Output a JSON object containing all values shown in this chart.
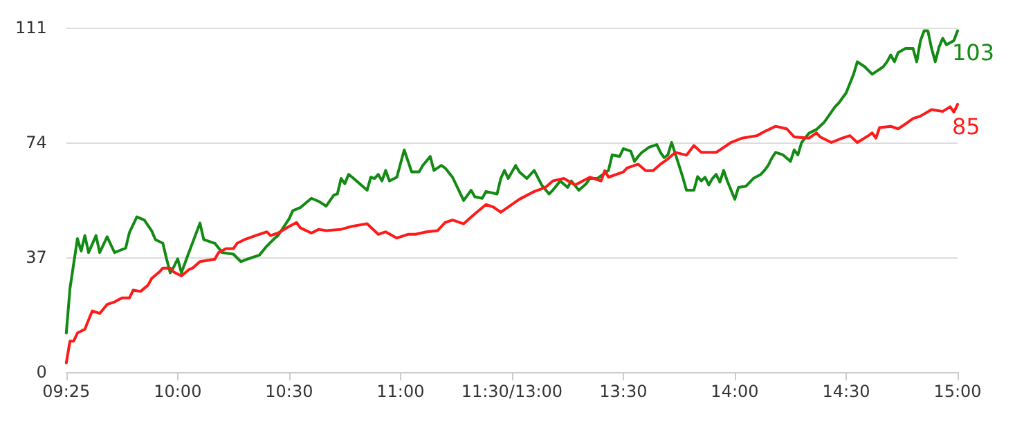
{
  "chart_data": {
    "type": "line",
    "categories": [
      "09:25",
      null,
      null,
      null,
      null,
      null,
      null,
      null,
      null,
      null,
      null,
      null,
      null,
      null,
      null,
      null,
      null,
      null,
      null,
      null,
      null,
      null,
      null,
      null,
      null,
      null,
      null,
      null,
      null,
      null,
      "10:00",
      null,
      null,
      null,
      null,
      null,
      null,
      null,
      null,
      null,
      null,
      null,
      null,
      null,
      null,
      null,
      null,
      null,
      null,
      null,
      null,
      null,
      null,
      null,
      null,
      null,
      null,
      null,
      null,
      null,
      "10:30",
      null,
      null,
      null,
      null,
      null,
      null,
      null,
      null,
      null,
      null,
      null,
      null,
      null,
      null,
      null,
      null,
      null,
      null,
      null,
      null,
      null,
      null,
      null,
      null,
      null,
      null,
      null,
      null,
      null,
      "11:00",
      null,
      null,
      null,
      null,
      null,
      null,
      null,
      null,
      null,
      null,
      null,
      null,
      null,
      null,
      null,
      null,
      null,
      null,
      null,
      null,
      null,
      null,
      null,
      null,
      null,
      null,
      null,
      null,
      null,
      "11:30/13:00",
      null,
      null,
      null,
      null,
      null,
      null,
      null,
      null,
      null,
      null,
      null,
      null,
      null,
      null,
      null,
      null,
      null,
      null,
      null,
      null,
      null,
      null,
      null,
      null,
      null,
      null,
      null,
      null,
      null,
      "13:30",
      null,
      null,
      null,
      null,
      null,
      null,
      null,
      null,
      null,
      null,
      null,
      null,
      null,
      null,
      null,
      null,
      null,
      null,
      null,
      null,
      null,
      null,
      null,
      null,
      null,
      null,
      null,
      null,
      null,
      "14:00",
      null,
      null,
      null,
      null,
      null,
      null,
      null,
      null,
      null,
      null,
      null,
      null,
      null,
      null,
      null,
      null,
      null,
      null,
      null,
      null,
      null,
      null,
      null,
      null,
      null,
      null,
      null,
      null,
      null,
      "14:30",
      null,
      null,
      null,
      null,
      null,
      null,
      null,
      null,
      null,
      null,
      null,
      null,
      null,
      null,
      null,
      null,
      null,
      null,
      null,
      null,
      null,
      null,
      null,
      null,
      null,
      null,
      null,
      null,
      null,
      "15:00"
    ],
    "ylim": [
      0,
      111
    ],
    "yticks": [
      0,
      37,
      74,
      111
    ],
    "grid": "y",
    "legend": false,
    "marker": "none",
    "line_style": "solid",
    "series": [
      {
        "name": "103",
        "color": "#138a13",
        "values": [
          12.6,
          27,
          null,
          43,
          39,
          44,
          38.5,
          null,
          44,
          38.5,
          null,
          43.6,
          null,
          38.5,
          39,
          null,
          40,
          45,
          null,
          50,
          null,
          49,
          null,
          45.5,
          42.7,
          null,
          41.5,
          36.5,
          32,
          34,
          36.5,
          32,
          null,
          38.5,
          null,
          null,
          48,
          42.7,
          null,
          null,
          41.5,
          null,
          38.5,
          null,
          null,
          38,
          null,
          35.6,
          null,
          36.5,
          null,
          null,
          37.7,
          null,
          40.6,
          null,
          43,
          44,
          null,
          null,
          49.4,
          52,
          null,
          53,
          null,
          null,
          56,
          null,
          55,
          null,
          53.5,
          null,
          57,
          57.4,
          62.4,
          60.7,
          63.7,
          62.8,
          null,
          null,
          null,
          58.6,
          62.8,
          62.4,
          63.7,
          61.6,
          65,
          61.6,
          null,
          62.8,
          null,
          71.6,
          null,
          64.5,
          null,
          64.5,
          66.6,
          null,
          69.5,
          65,
          null,
          66.6,
          65.8,
          null,
          62.8,
          60.3,
          null,
          55.3,
          null,
          58.6,
          56.5,
          null,
          56,
          58.2,
          null,
          null,
          57.4,
          62.4,
          65,
          62.4,
          null,
          66.6,
          64.5,
          null,
          62.4,
          null,
          65,
          null,
          60.3,
          null,
          57.4,
          58.6,
          null,
          61.6,
          null,
          59.5,
          61.6,
          null,
          58.6,
          null,
          60.7,
          62.4,
          null,
          62.4,
          null,
          null,
          65,
          70,
          null,
          69.5,
          72,
          null,
          71.2,
          67.9,
          69.5,
          70.8,
          null,
          72.5,
          null,
          73.3,
          70.8,
          69.1,
          70,
          74,
          null,
          66.6,
          62.8,
          58.6,
          null,
          58.6,
          63,
          61.6,
          62.8,
          60.3,
          62.4,
          63.7,
          61.2,
          65,
          61.6,
          null,
          55.7,
          59.5,
          null,
          59.9,
          null,
          62.4,
          null,
          63.7,
          65,
          66.6,
          69,
          70.8,
          null,
          70,
          null,
          67.9,
          71.6,
          70,
          74,
          null,
          77,
          null,
          78.2,
          null,
          80.4,
          null,
          83.8,
          85.5,
          86.7,
          null,
          90,
          93,
          96,
          100,
          null,
          98.4,
          null,
          96,
          null,
          null,
          98.4,
          100,
          102.2,
          100,
          103,
          null,
          104.3,
          null,
          104.3,
          100,
          106.8,
          110,
          110,
          104.3,
          100,
          104.7,
          107.6,
          105.5,
          null,
          106.8,
          110
        ]
      },
      {
        "name": "85",
        "color": "#ff1a1a",
        "values": [
          3,
          10,
          10,
          12.6,
          null,
          13.8,
          16.8,
          19.7,
          null,
          18.9,
          null,
          21.8,
          null,
          22.6,
          null,
          23.9,
          null,
          23.9,
          26.4,
          null,
          26,
          null,
          28,
          30.2,
          null,
          32.2,
          33.5,
          null,
          33.5,
          32.2,
          null,
          31,
          null,
          33,
          33.5,
          null,
          35.6,
          null,
          null,
          null,
          36.4,
          38.5,
          null,
          39.8,
          null,
          39.8,
          41.5,
          null,
          42.7,
          null,
          null,
          44,
          null,
          null,
          45.2,
          44,
          null,
          44.8,
          null,
          null,
          46.9,
          null,
          48.2,
          46.5,
          null,
          null,
          44.8,
          null,
          46,
          null,
          45.6,
          null,
          null,
          null,
          46,
          null,
          null,
          47,
          null,
          null,
          null,
          47.8,
          null,
          null,
          44.4,
          null,
          45.2,
          null,
          null,
          43.2,
          null,
          null,
          44.4,
          null,
          44.4,
          null,
          null,
          45.2,
          null,
          null,
          45.6,
          null,
          48.2,
          null,
          49,
          null,
          null,
          47.8,
          null,
          null,
          51,
          null,
          null,
          54,
          null,
          53.2,
          null,
          51.5,
          null,
          null,
          null,
          null,
          55.7,
          null,
          null,
          null,
          58.2,
          null,
          null,
          59.5,
          null,
          61.6,
          null,
          null,
          62.4,
          null,
          null,
          60.3,
          null,
          null,
          null,
          62.8,
          null,
          null,
          61.6,
          64.9,
          62.8,
          null,
          null,
          null,
          64.5,
          65.8,
          null,
          null,
          67,
          null,
          64.9,
          null,
          64.9,
          null,
          67,
          null,
          68.7,
          null,
          70.8,
          null,
          null,
          69.9,
          null,
          73,
          null,
          70.8,
          null,
          null,
          null,
          70.8,
          null,
          null,
          null,
          74,
          null,
          null,
          75.4,
          null,
          null,
          null,
          76.2,
          null,
          77.5,
          null,
          null,
          79.2,
          null,
          null,
          78.4,
          null,
          75.8,
          null,
          null,
          null,
          75.4,
          null,
          77.1,
          75.8,
          null,
          null,
          74,
          null,
          null,
          75.4,
          null,
          76.2,
          null,
          74,
          null,
          null,
          76.2,
          77.1,
          75.4,
          78.8,
          null,
          null,
          79.2,
          null,
          78.4,
          null,
          80,
          null,
          81.7,
          null,
          82.5,
          null,
          null,
          84.6,
          null,
          null,
          84,
          null,
          85.5,
          83.8,
          86.3
        ]
      }
    ]
  }
}
